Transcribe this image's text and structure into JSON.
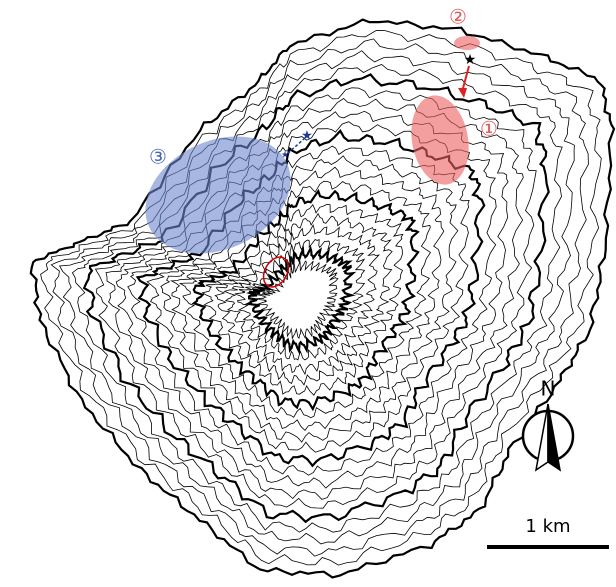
{
  "annotations": [
    {
      "label": "①"
    },
    {
      "label": "②"
    },
    {
      "label": "③"
    }
  ],
  "north_arrow": {
    "label": "N"
  },
  "scale_bar": {
    "label": "1 km"
  }
}
